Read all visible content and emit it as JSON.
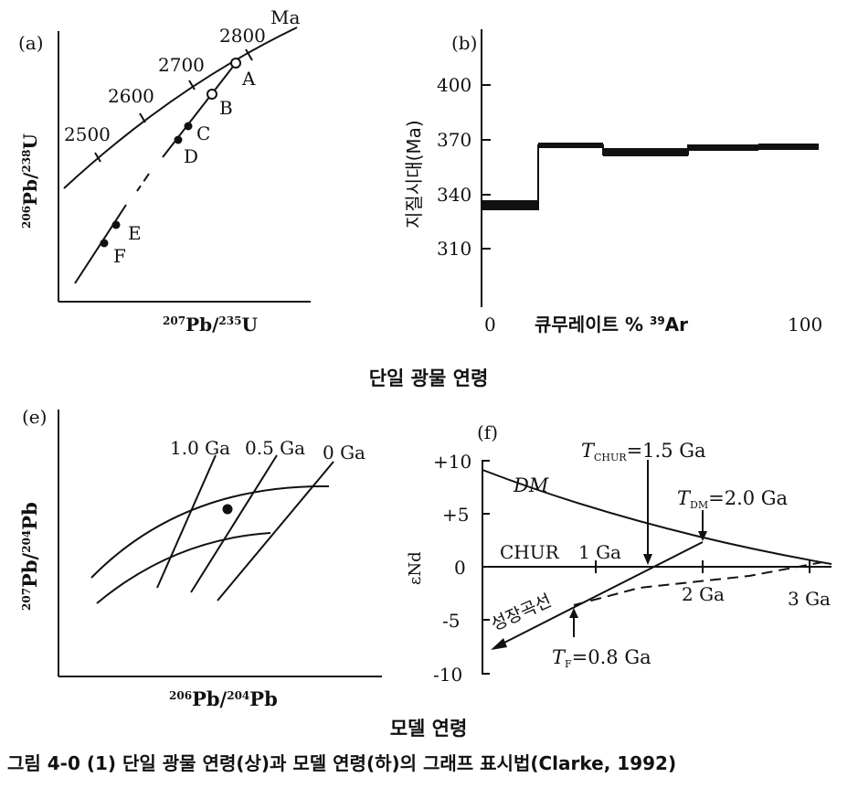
{
  "panel_a": {
    "label": "(a)",
    "concordia_label": "Ma",
    "ticks": [
      "2500",
      "2600",
      "2700",
      "2800"
    ],
    "points": [
      "A",
      "B",
      "C",
      "D",
      "E",
      "F"
    ],
    "y_axis_label": {
      "sup1": "206",
      "base1": "Pb/",
      "sup2": "238",
      "base2": "U"
    },
    "x_axis_label": {
      "sup1": "207",
      "base1": "Pb/",
      "sup2": "235",
      "base2": "U"
    }
  },
  "panel_b": {
    "label": "(b)",
    "y_axis_title": "지질시대(Ma)",
    "y_ticks": [
      "400",
      "370",
      "340",
      "310"
    ],
    "x_axis_title": {
      "prefix": "큐무레이트 % ",
      "sup": "39",
      "base": "Ar"
    },
    "x_start": "0",
    "x_end": "100"
  },
  "section_top_title": "단일 광물 연령",
  "panel_e": {
    "label": "(e)",
    "isochrons": [
      "1.0 Ga",
      "0.5 Ga",
      "0 Ga"
    ],
    "y_axis_label": {
      "sup1": "207",
      "base1": "Pb/",
      "sup2": "204",
      "base2": "Pb"
    },
    "x_axis_label": {
      "sup1": "206",
      "base1": "Pb/",
      "sup2": "204",
      "base2": "Pb"
    }
  },
  "panel_f": {
    "label": "(f)",
    "y_ticks": [
      "+10",
      "+5",
      "0",
      "-5",
      "-10"
    ],
    "y_axis_label": "εNd",
    "dm_label": "DM",
    "chur_label": "CHUR",
    "x_ticks": [
      "1 Ga",
      "2 Ga",
      "3 Ga"
    ],
    "t_chur": {
      "t": "T",
      "sub": "CHUR",
      "val": "=1.5 Ga"
    },
    "t_dm": {
      "t": "T",
      "sub": "DM",
      "val": "=2.0 Ga"
    },
    "t_f": {
      "t": "T",
      "sub": "F",
      "val": "=0.8 Ga"
    },
    "growth_label": "성장곡선"
  },
  "section_bottom_title": "모델 연령",
  "figure_caption": "그림 4-0 (1)  단일 광물 연령(상)과 모델 연령(하)의 그래프 표시법(Clarke, 1992)"
}
